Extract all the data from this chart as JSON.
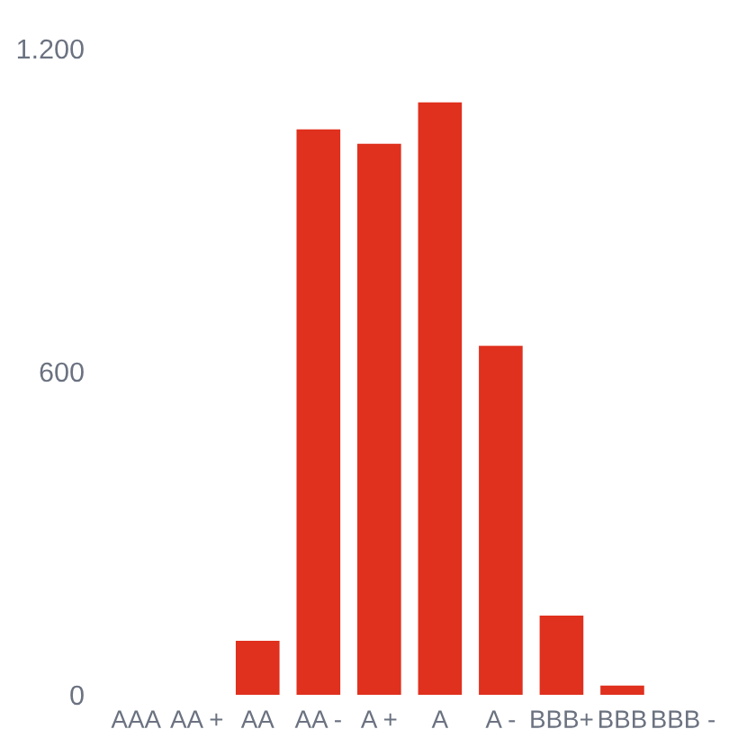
{
  "chart_data": {
    "type": "bar",
    "categories": [
      "AAA",
      "AA +",
      "AA",
      "AA -",
      "A +",
      "A",
      "A -",
      "BBB+",
      "BBB",
      "BBB -"
    ],
    "values": [
      0,
      0,
      100,
      1050,
      1023,
      1100,
      648,
      147,
      17,
      0
    ],
    "color": "#e0301e",
    "ylim": [
      0,
      1200
    ],
    "yticks": [
      0,
      600,
      {
        "value": 1200,
        "label": "1.200"
      }
    ],
    "grid": false
  }
}
